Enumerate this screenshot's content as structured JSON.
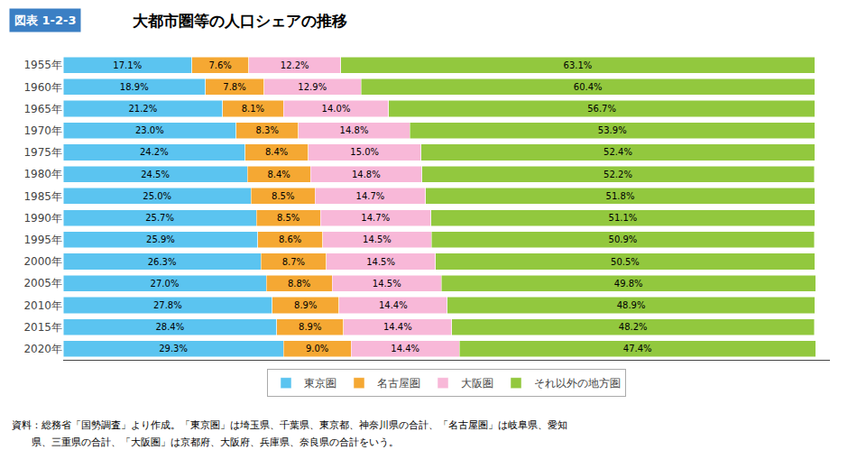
{
  "chart_data": {
    "type": "bar",
    "orientation": "horizontal",
    "stacked": true,
    "title": "大都市圏等の人口シェアの推移",
    "annotations": [
      "図表 1-2-3",
      "資料：総務省「国勢調査」より作成。「東京圏」は埼玉県、千葉県、東京都、神奈川県の合計、「名古屋圏」は岐阜県、愛知",
      "　　県、三重県の合計、「大阪圏」は京都府、大阪府、兵庫県、奈良県の合計をいう。"
    ],
    "categories": [
      "1955年",
      "1960年",
      "1965年",
      "1970年",
      "1975年",
      "1980年",
      "1985年",
      "1990年",
      "1995年",
      "2000年",
      "2005年",
      "2010年",
      "2015年",
      "2020年"
    ],
    "series": [
      {
        "name": "東京圏",
        "color": "#5BC4F0",
        "values": [
          17.1,
          18.9,
          21.2,
          23.0,
          24.2,
          24.5,
          25.0,
          25.7,
          25.9,
          26.3,
          27.0,
          27.8,
          28.4,
          29.3
        ],
        "value_labels": [
          "17.1%",
          "18.9%",
          "21.2%",
          "23.0%",
          "24.2%",
          "24.5%",
          "25.0%",
          "25.7%",
          "25.9%",
          "26.3%",
          "27.0%",
          "27.8%",
          "28.4%",
          "29.3%"
        ]
      },
      {
        "name": "名古屋圏",
        "color": "#F5A833",
        "values": [
          7.6,
          7.8,
          8.1,
          8.3,
          8.4,
          8.4,
          8.5,
          8.5,
          8.6,
          8.7,
          8.8,
          8.9,
          8.9,
          9.0
        ],
        "value_labels": [
          "7.6%",
          "7.8%",
          "8.1%",
          "8.3%",
          "8.4%",
          "8.4%",
          "8.5%",
          "8.5%",
          "8.6%",
          "8.7%",
          "8.8%",
          "8.9%",
          "8.9%",
          "9.0%"
        ]
      },
      {
        "name": "大阪圏",
        "color": "#F8B8D8",
        "values": [
          12.2,
          12.9,
          14.0,
          14.8,
          15.0,
          14.8,
          14.7,
          14.7,
          14.5,
          14.5,
          14.5,
          14.4,
          14.4,
          14.4
        ],
        "value_labels": [
          "12.2%",
          "12.9%",
          "14.0%",
          "14.8%",
          "15.0%",
          "14.8%",
          "14.7%",
          "14.7%",
          "14.5%",
          "14.5%",
          "14.5%",
          "14.4%",
          "14.4%",
          "14.4%"
        ]
      },
      {
        "name": "それ以外の地方圏",
        "color": "#92C83E",
        "values": [
          63.1,
          60.4,
          56.7,
          53.9,
          52.4,
          52.2,
          51.8,
          51.1,
          50.9,
          50.5,
          49.8,
          48.9,
          48.2,
          47.4
        ],
        "value_labels": [
          "63.1%",
          "60.4%",
          "56.7%",
          "53.9%",
          "52.4%",
          "52.2%",
          "51.8%",
          "51.1%",
          "50.9%",
          "50.5%",
          "49.8%",
          "48.9%",
          "48.2%",
          "47.4%"
        ]
      }
    ],
    "xlim": [
      0,
      102
    ],
    "data_labels": true,
    "tick_labels": "y",
    "legend": "bottom",
    "grid": false
  }
}
